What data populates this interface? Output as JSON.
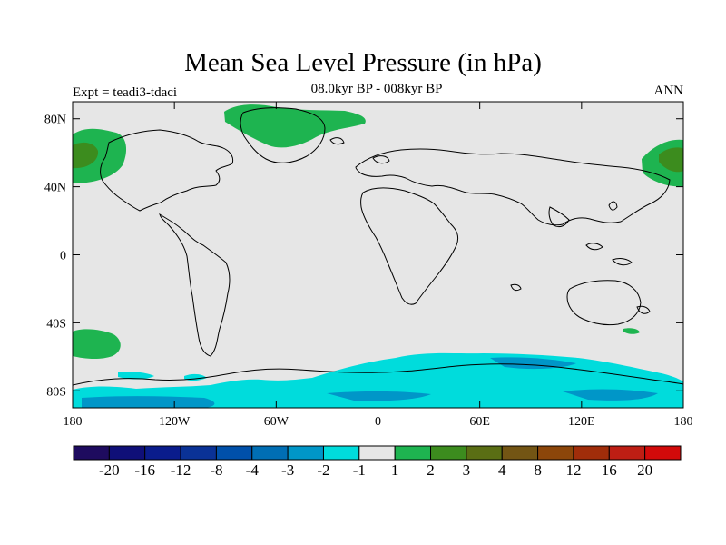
{
  "title": "Mean Sea Level Pressure (in hPa)",
  "subtitle": "08.0kyr BP - 008kyr BP",
  "left_label": "Expt = teadi3-tdaci",
  "right_label": "ANN",
  "map": {
    "projection": "cylindrical equidistant",
    "x_ticks": [
      "180",
      "120W",
      "60W",
      "0",
      "60E",
      "120E",
      "180"
    ],
    "y_ticks": [
      "80N",
      "40N",
      "0",
      "40S",
      "80S"
    ],
    "lon_range": [
      -180,
      180
    ],
    "lat_range": [
      -90,
      90
    ],
    "background_color": "#e6e6e6",
    "coastline_color": "#000000"
  },
  "colorbar": {
    "labels": [
      "-20",
      "-16",
      "-12",
      "-8",
      "-4",
      "-3",
      "-2",
      "-1",
      "1",
      "2",
      "3",
      "4",
      "8",
      "12",
      "16",
      "20"
    ],
    "colors": [
      "#1e0b5f",
      "#0f0f78",
      "#0a1c8c",
      "#0a3296",
      "#0050aa",
      "#006eb4",
      "#0096c8",
      "#00dcdc",
      "#e6e6e6",
      "#1eb450",
      "#3c8c1e",
      "#5a6e14",
      "#735514",
      "#8c460a",
      "#a02d0a",
      "#be1e14",
      "#d20a0a"
    ]
  }
}
